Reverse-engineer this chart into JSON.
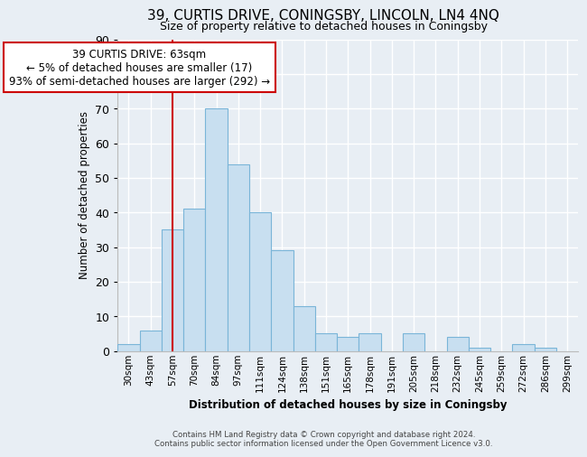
{
  "title": "39, CURTIS DRIVE, CONINGSBY, LINCOLN, LN4 4NQ",
  "subtitle": "Size of property relative to detached houses in Coningsby",
  "xlabel": "Distribution of detached houses by size in Coningsby",
  "ylabel": "Number of detached properties",
  "bar_labels": [
    "30sqm",
    "43sqm",
    "57sqm",
    "70sqm",
    "84sqm",
    "97sqm",
    "111sqm",
    "124sqm",
    "138sqm",
    "151sqm",
    "165sqm",
    "178sqm",
    "191sqm",
    "205sqm",
    "218sqm",
    "232sqm",
    "245sqm",
    "259sqm",
    "272sqm",
    "286sqm",
    "299sqm"
  ],
  "bar_values": [
    2,
    6,
    35,
    41,
    70,
    54,
    40,
    29,
    13,
    5,
    4,
    5,
    0,
    5,
    0,
    4,
    1,
    0,
    2,
    1,
    0
  ],
  "bar_color": "#c8dff0",
  "bar_edge_color": "#7ab5d8",
  "ylim": [
    0,
    90
  ],
  "yticks": [
    0,
    10,
    20,
    30,
    40,
    50,
    60,
    70,
    80,
    90
  ],
  "vline_x_idx": 2,
  "vline_color": "#cc0000",
  "annotation_title": "39 CURTIS DRIVE: 63sqm",
  "annotation_line1": "← 5% of detached houses are smaller (17)",
  "annotation_line2": "93% of semi-detached houses are larger (292) →",
  "annotation_box_facecolor": "#ffffff",
  "annotation_box_edgecolor": "#cc0000",
  "footer_line1": "Contains HM Land Registry data © Crown copyright and database right 2024.",
  "footer_line2": "Contains public sector information licensed under the Open Government Licence v3.0.",
  "background_color": "#e8eef4",
  "grid_color": "#ffffff"
}
